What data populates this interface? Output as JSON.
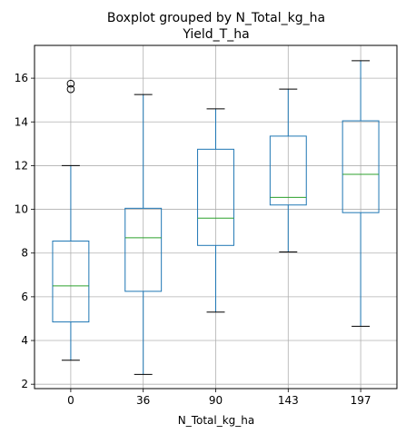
{
  "chart_data": {
    "type": "boxplot",
    "suptitle": "Boxplot grouped by N_Total_kg_ha",
    "title": "Yield_T_ha",
    "xlabel": "N_Total_kg_ha",
    "ylabel": "",
    "ylim": [
      1.8,
      17.5
    ],
    "yticks": [
      2,
      4,
      6,
      8,
      10,
      12,
      14,
      16
    ],
    "grid": true,
    "colors": {
      "box": "#1f77b4",
      "median": "#2ca02c",
      "whisker": "#1f77b4",
      "cap": "#000000",
      "grid": "#b0b0b0"
    },
    "categories": [
      "0",
      "36",
      "90",
      "143",
      "197"
    ],
    "boxes": [
      {
        "category": "0",
        "whislo": 3.1,
        "q1": 4.85,
        "med": 6.5,
        "q3": 8.55,
        "whishi": 12.0,
        "fliers": [
          15.5,
          15.75
        ]
      },
      {
        "category": "36",
        "whislo": 2.45,
        "q1": 6.25,
        "med": 8.7,
        "q3": 10.05,
        "whishi": 15.25,
        "fliers": []
      },
      {
        "category": "90",
        "whislo": 5.3,
        "q1": 8.35,
        "med": 9.6,
        "q3": 12.75,
        "whishi": 14.6,
        "fliers": []
      },
      {
        "category": "143",
        "whislo": 8.05,
        "q1": 10.2,
        "med": 10.55,
        "q3": 13.35,
        "whishi": 15.5,
        "fliers": []
      },
      {
        "category": "197",
        "whislo": 4.65,
        "q1": 9.85,
        "med": 11.6,
        "q3": 14.05,
        "whishi": 16.8,
        "fliers": []
      }
    ]
  }
}
